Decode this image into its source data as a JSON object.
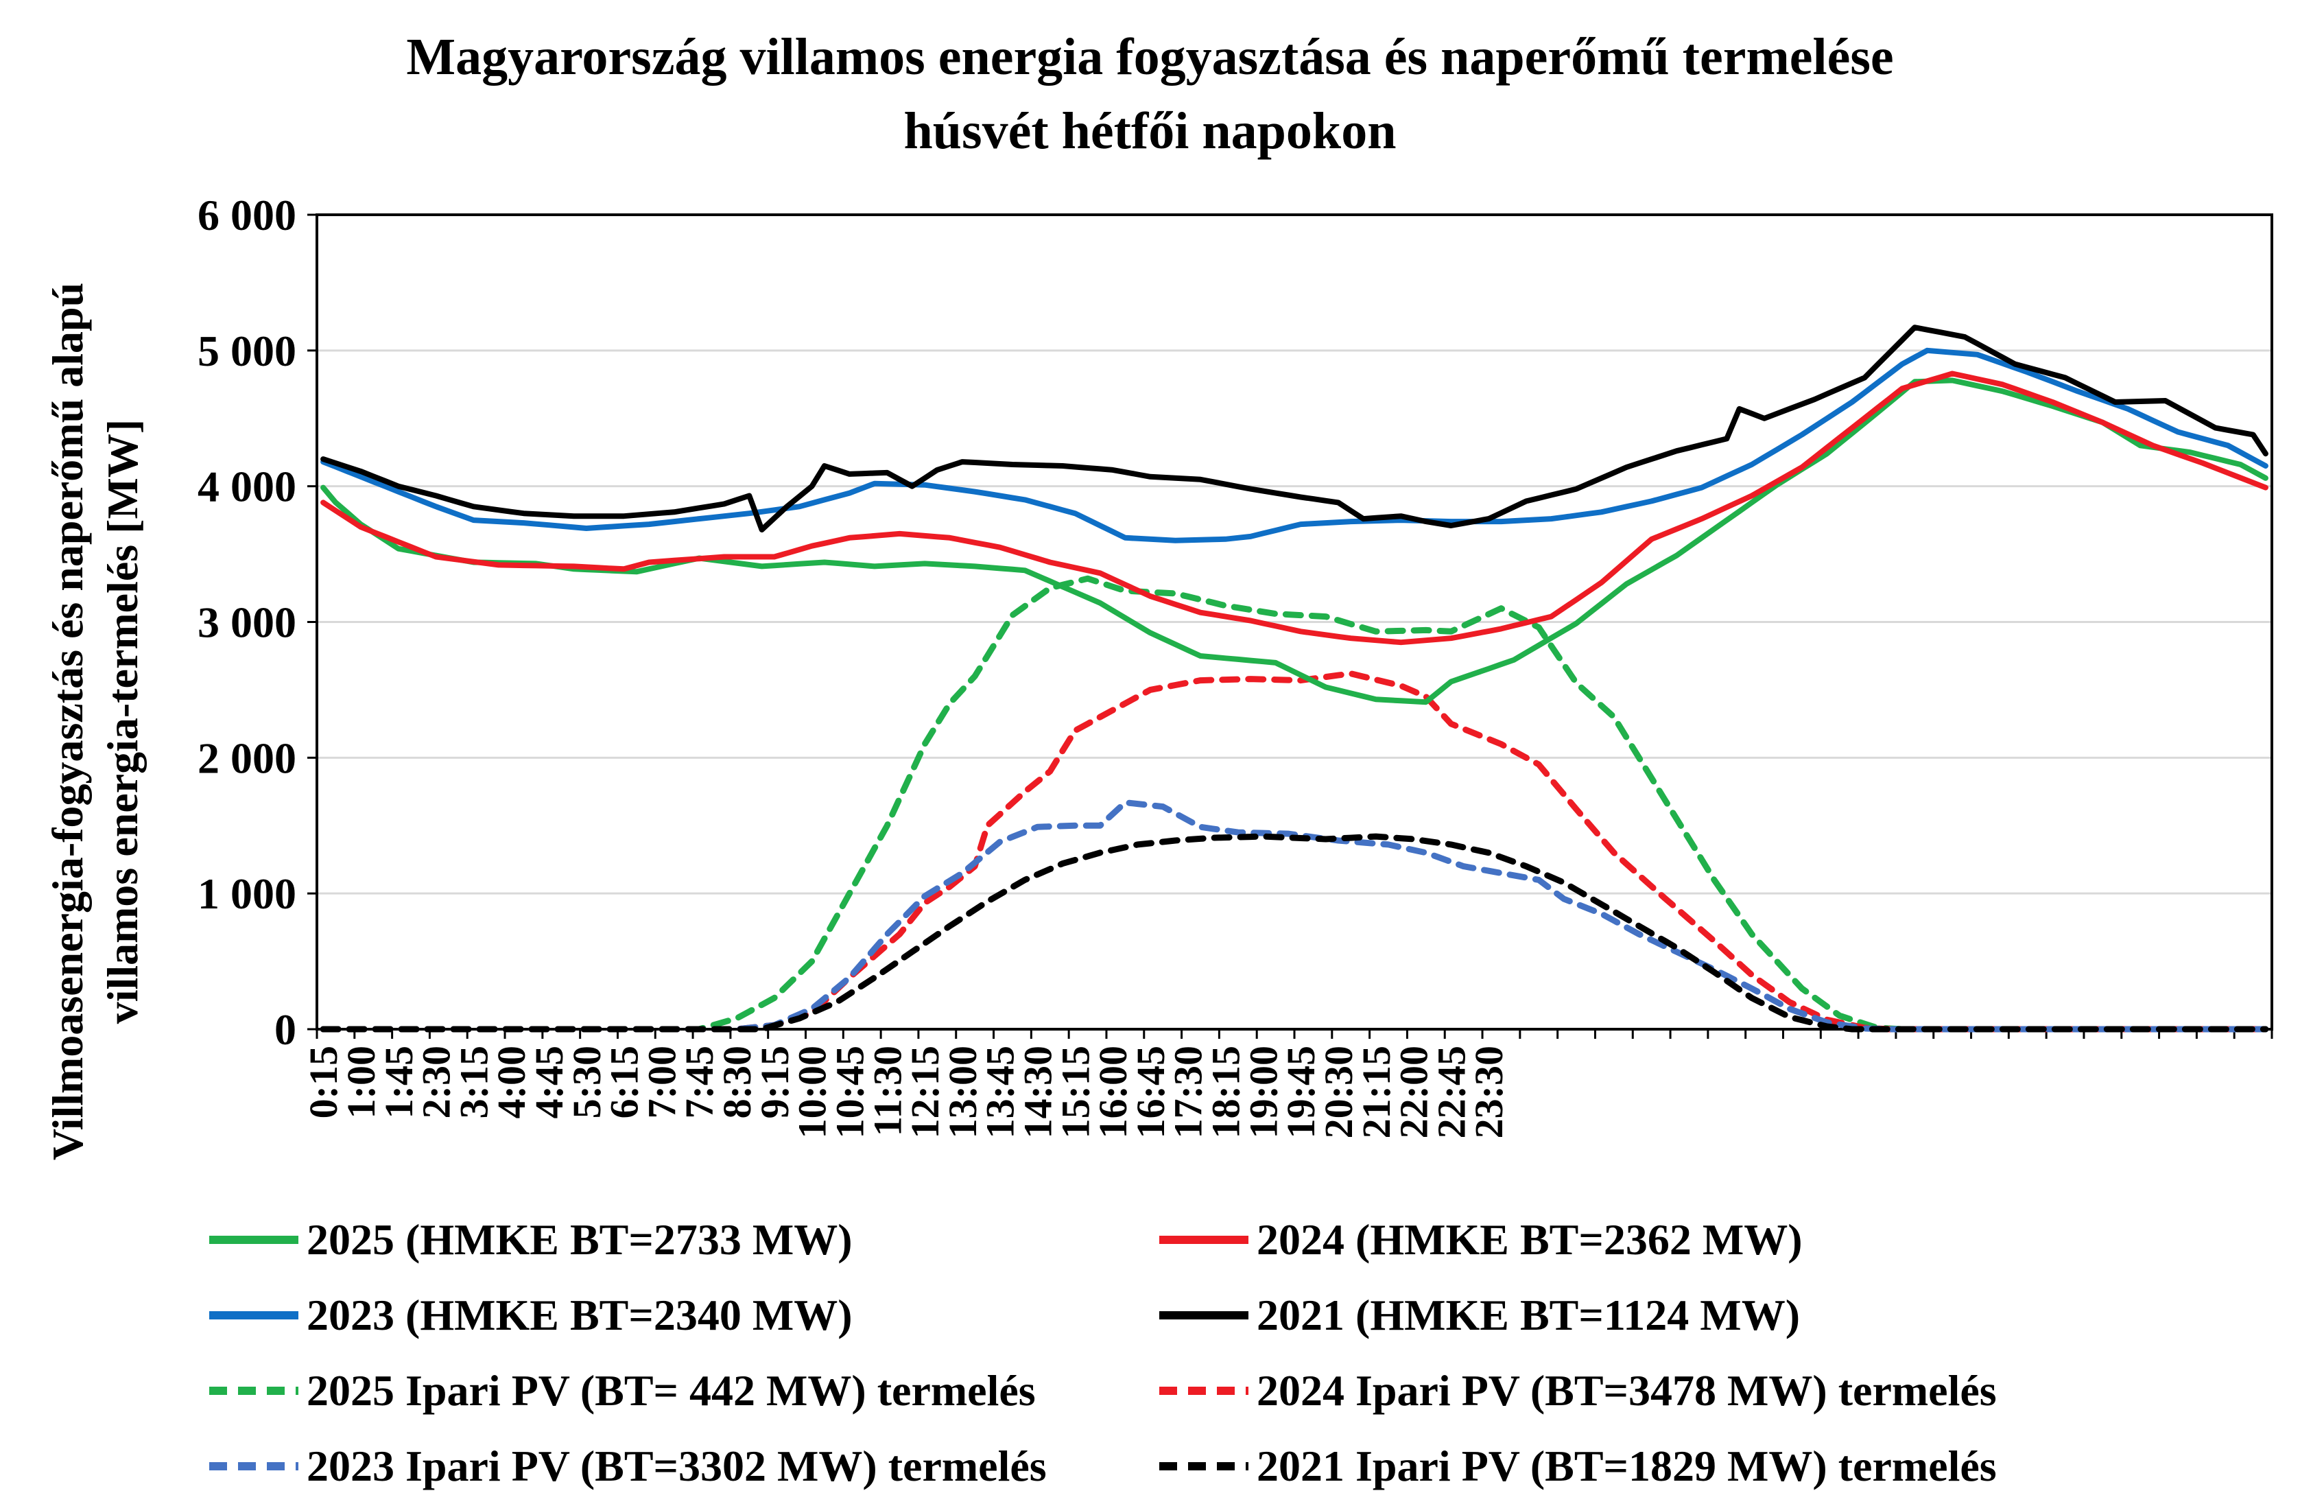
{
  "chart_data": {
    "type": "line",
    "title_line1": "Magyarország villamos energia fogyasztása és naperőmű termelése",
    "title_line2": "húsvét hétfői napokon",
    "ylabel_line1": "Villmoasenergia-fogyasztás és naperőmű alapú",
    "ylabel_line2": "villamos energia-termelés [MW]",
    "xlabel": "",
    "ylim": [
      0,
      6000
    ],
    "yticks": [
      0,
      1000,
      2000,
      3000,
      4000,
      5000,
      6000
    ],
    "ytick_labels": [
      "0",
      "1 000",
      "2 000",
      "3 000",
      "4 000",
      "5 000",
      "6 000"
    ],
    "x_tick_labels": [
      "0:15",
      "1:00",
      "1:45",
      "2:30",
      "3:15",
      "4:00",
      "4:45",
      "5:30",
      "6:15",
      "7:00",
      "7:45",
      "8:30",
      "9:15",
      "10:00",
      "10:45",
      "11:30",
      "12:15",
      "13:00",
      "13:45",
      "14:30",
      "15:15",
      "16:00",
      "16:45",
      "17:30",
      "18:15",
      "19:00",
      "19:45",
      "20:30",
      "21:15",
      "22:00",
      "22:45",
      "23:30"
    ],
    "grid": "horizontal",
    "legend_position": "bottom",
    "series": [
      {
        "name": "2025 (HMKE BT=2733 MW)",
        "color": "#21b04b",
        "dash": false,
        "keys": [
          [
            0,
            3990
          ],
          [
            1,
            3880
          ],
          [
            3,
            3720
          ],
          [
            6,
            3540
          ],
          [
            12,
            3440
          ],
          [
            17,
            3430
          ],
          [
            20,
            3390
          ],
          [
            25,
            3370
          ],
          [
            30,
            3470
          ],
          [
            35,
            3410
          ],
          [
            40,
            3440
          ],
          [
            44,
            3410
          ],
          [
            48,
            3430
          ],
          [
            52,
            3410
          ],
          [
            56,
            3380
          ],
          [
            62,
            3140
          ],
          [
            66,
            2920
          ],
          [
            70,
            2750
          ],
          [
            76,
            2700
          ],
          [
            80,
            2520
          ],
          [
            84,
            2430
          ],
          [
            88,
            2410
          ],
          [
            90,
            2560
          ],
          [
            95,
            2720
          ],
          [
            100,
            2990
          ],
          [
            104,
            3280
          ],
          [
            108,
            3490
          ],
          [
            112,
            3750
          ],
          [
            116,
            4010
          ],
          [
            120,
            4240
          ],
          [
            124,
            4540
          ],
          [
            127,
            4770
          ],
          [
            130,
            4780
          ],
          [
            134,
            4700
          ],
          [
            138,
            4590
          ],
          [
            142,
            4470
          ],
          [
            145,
            4300
          ],
          [
            149,
            4250
          ],
          [
            153,
            4160
          ],
          [
            155,
            4060
          ]
        ]
      },
      {
        "name": "2024 (HMKE BT=2362 MW)",
        "color": "#ed1c24",
        "dash": false,
        "keys": [
          [
            0,
            3880
          ],
          [
            3,
            3700
          ],
          [
            6,
            3590
          ],
          [
            9,
            3480
          ],
          [
            14,
            3420
          ],
          [
            20,
            3410
          ],
          [
            24,
            3390
          ],
          [
            26,
            3440
          ],
          [
            32,
            3480
          ],
          [
            36,
            3480
          ],
          [
            39,
            3560
          ],
          [
            42,
            3620
          ],
          [
            46,
            3650
          ],
          [
            50,
            3620
          ],
          [
            54,
            3550
          ],
          [
            58,
            3440
          ],
          [
            62,
            3360
          ],
          [
            66,
            3190
          ],
          [
            70,
            3070
          ],
          [
            74,
            3010
          ],
          [
            78,
            2930
          ],
          [
            82,
            2880
          ],
          [
            86,
            2850
          ],
          [
            90,
            2880
          ],
          [
            94,
            2950
          ],
          [
            98,
            3040
          ],
          [
            102,
            3290
          ],
          [
            106,
            3610
          ],
          [
            110,
            3760
          ],
          [
            114,
            3930
          ],
          [
            118,
            4140
          ],
          [
            122,
            4430
          ],
          [
            126,
            4720
          ],
          [
            130,
            4830
          ],
          [
            134,
            4750
          ],
          [
            138,
            4620
          ],
          [
            142,
            4470
          ],
          [
            146,
            4300
          ],
          [
            150,
            4170
          ],
          [
            155,
            3990
          ]
        ]
      },
      {
        "name": "2023 (HMKE BT=2340 MW)",
        "color": "#0f6fc6",
        "dash": false,
        "keys": [
          [
            0,
            4180
          ],
          [
            3,
            4070
          ],
          [
            6,
            3960
          ],
          [
            9,
            3850
          ],
          [
            12,
            3750
          ],
          [
            16,
            3730
          ],
          [
            21,
            3690
          ],
          [
            26,
            3720
          ],
          [
            30,
            3760
          ],
          [
            34,
            3800
          ],
          [
            38,
            3850
          ],
          [
            42,
            3950
          ],
          [
            44,
            4020
          ],
          [
            48,
            4010
          ],
          [
            52,
            3960
          ],
          [
            56,
            3900
          ],
          [
            60,
            3800
          ],
          [
            64,
            3620
          ],
          [
            68,
            3600
          ],
          [
            72,
            3610
          ],
          [
            74,
            3630
          ],
          [
            78,
            3720
          ],
          [
            82,
            3740
          ],
          [
            86,
            3750
          ],
          [
            90,
            3740
          ],
          [
            94,
            3740
          ],
          [
            98,
            3760
          ],
          [
            102,
            3810
          ],
          [
            106,
            3890
          ],
          [
            110,
            3990
          ],
          [
            114,
            4160
          ],
          [
            118,
            4380
          ],
          [
            122,
            4620
          ],
          [
            126,
            4900
          ],
          [
            128,
            5000
          ],
          [
            132,
            4970
          ],
          [
            136,
            4840
          ],
          [
            140,
            4700
          ],
          [
            144,
            4570
          ],
          [
            148,
            4400
          ],
          [
            152,
            4300
          ],
          [
            155,
            4150
          ]
        ]
      },
      {
        "name": "2021 (HMKE BT=1124 MW)",
        "color": "#000000",
        "dash": false,
        "keys": [
          [
            0,
            4200
          ],
          [
            3,
            4110
          ],
          [
            6,
            4000
          ],
          [
            9,
            3930
          ],
          [
            12,
            3850
          ],
          [
            16,
            3800
          ],
          [
            20,
            3780
          ],
          [
            24,
            3780
          ],
          [
            28,
            3810
          ],
          [
            32,
            3870
          ],
          [
            34,
            3930
          ],
          [
            35,
            3680
          ],
          [
            37,
            3850
          ],
          [
            39,
            4000
          ],
          [
            40,
            4150
          ],
          [
            42,
            4090
          ],
          [
            45,
            4100
          ],
          [
            47,
            4000
          ],
          [
            49,
            4120
          ],
          [
            51,
            4180
          ],
          [
            55,
            4160
          ],
          [
            59,
            4150
          ],
          [
            63,
            4120
          ],
          [
            66,
            4070
          ],
          [
            70,
            4050
          ],
          [
            74,
            3980
          ],
          [
            78,
            3920
          ],
          [
            81,
            3880
          ],
          [
            83,
            3760
          ],
          [
            86,
            3780
          ],
          [
            88,
            3740
          ],
          [
            90,
            3710
          ],
          [
            93,
            3760
          ],
          [
            96,
            3890
          ],
          [
            100,
            3980
          ],
          [
            104,
            4140
          ],
          [
            108,
            4260
          ],
          [
            112,
            4350
          ],
          [
            113,
            4570
          ],
          [
            115,
            4500
          ],
          [
            119,
            4640
          ],
          [
            123,
            4800
          ],
          [
            127,
            5170
          ],
          [
            131,
            5100
          ],
          [
            135,
            4900
          ],
          [
            139,
            4800
          ],
          [
            143,
            4620
          ],
          [
            147,
            4630
          ],
          [
            151,
            4430
          ],
          [
            154,
            4380
          ],
          [
            155,
            4240
          ]
        ]
      },
      {
        "name": "2025 Ipari PV (BT= 442 MW) termelés",
        "color": "#21b04b",
        "dash": true,
        "keys": [
          [
            0,
            0
          ],
          [
            30,
            0
          ],
          [
            33,
            80
          ],
          [
            36,
            230
          ],
          [
            39,
            500
          ],
          [
            42,
            1000
          ],
          [
            45,
            1500
          ],
          [
            48,
            2100
          ],
          [
            50,
            2400
          ],
          [
            52,
            2600
          ],
          [
            55,
            3050
          ],
          [
            58,
            3250
          ],
          [
            61,
            3320
          ],
          [
            64,
            3230
          ],
          [
            68,
            3210
          ],
          [
            72,
            3120
          ],
          [
            76,
            3060
          ],
          [
            80,
            3040
          ],
          [
            84,
            2930
          ],
          [
            88,
            2940
          ],
          [
            90,
            2930
          ],
          [
            94,
            3100
          ],
          [
            97,
            2960
          ],
          [
            100,
            2550
          ],
          [
            103,
            2300
          ],
          [
            107,
            1700
          ],
          [
            111,
            1100
          ],
          [
            114,
            700
          ],
          [
            118,
            300
          ],
          [
            121,
            100
          ],
          [
            124,
            10
          ],
          [
            126,
            0
          ],
          [
            155,
            0
          ]
        ]
      },
      {
        "name": "2024 Ipari PV (BT=3478 MW) termelés",
        "color": "#ed1c24",
        "dash": true,
        "keys": [
          [
            0,
            0
          ],
          [
            33,
            0
          ],
          [
            36,
            30
          ],
          [
            39,
            120
          ],
          [
            42,
            380
          ],
          [
            46,
            700
          ],
          [
            48,
            930
          ],
          [
            50,
            1050
          ],
          [
            52,
            1200
          ],
          [
            53,
            1500
          ],
          [
            56,
            1750
          ],
          [
            58,
            1900
          ],
          [
            60,
            2200
          ],
          [
            63,
            2350
          ],
          [
            66,
            2500
          ],
          [
            70,
            2570
          ],
          [
            74,
            2580
          ],
          [
            78,
            2570
          ],
          [
            82,
            2620
          ],
          [
            86,
            2530
          ],
          [
            88,
            2450
          ],
          [
            90,
            2250
          ],
          [
            94,
            2100
          ],
          [
            97,
            1950
          ],
          [
            100,
            1620
          ],
          [
            103,
            1300
          ],
          [
            107,
            970
          ],
          [
            111,
            650
          ],
          [
            114,
            400
          ],
          [
            117,
            200
          ],
          [
            120,
            70
          ],
          [
            123,
            10
          ],
          [
            125,
            0
          ],
          [
            155,
            0
          ]
        ]
      },
      {
        "name": "2023 Ipari PV (BT=3302 MW) termelés",
        "color": "#4472c4",
        "dash": true,
        "keys": [
          [
            0,
            0
          ],
          [
            33,
            0
          ],
          [
            36,
            30
          ],
          [
            39,
            150
          ],
          [
            42,
            380
          ],
          [
            45,
            700
          ],
          [
            48,
            980
          ],
          [
            51,
            1150
          ],
          [
            54,
            1380
          ],
          [
            57,
            1490
          ],
          [
            60,
            1500
          ],
          [
            62,
            1500
          ],
          [
            64,
            1670
          ],
          [
            67,
            1640
          ],
          [
            70,
            1490
          ],
          [
            73,
            1450
          ],
          [
            77,
            1440
          ],
          [
            81,
            1390
          ],
          [
            85,
            1360
          ],
          [
            88,
            1300
          ],
          [
            91,
            1200
          ],
          [
            94,
            1150
          ],
          [
            97,
            1100
          ],
          [
            99,
            960
          ],
          [
            102,
            850
          ],
          [
            105,
            700
          ],
          [
            108,
            570
          ],
          [
            111,
            440
          ],
          [
            114,
            300
          ],
          [
            117,
            150
          ],
          [
            120,
            50
          ],
          [
            123,
            5
          ],
          [
            125,
            0
          ],
          [
            155,
            0
          ]
        ]
      },
      {
        "name": "2021 Ipari PV (BT=1829 MW) termelés",
        "color": "#000000",
        "dash": true,
        "keys": [
          [
            0,
            0
          ],
          [
            35,
            0
          ],
          [
            38,
            80
          ],
          [
            41,
            200
          ],
          [
            44,
            380
          ],
          [
            47,
            570
          ],
          [
            50,
            760
          ],
          [
            53,
            940
          ],
          [
            56,
            1100
          ],
          [
            59,
            1220
          ],
          [
            62,
            1300
          ],
          [
            65,
            1360
          ],
          [
            68,
            1390
          ],
          [
            71,
            1410
          ],
          [
            75,
            1420
          ],
          [
            80,
            1400
          ],
          [
            84,
            1420
          ],
          [
            87,
            1400
          ],
          [
            90,
            1360
          ],
          [
            93,
            1300
          ],
          [
            96,
            1200
          ],
          [
            99,
            1080
          ],
          [
            102,
            920
          ],
          [
            105,
            760
          ],
          [
            108,
            600
          ],
          [
            111,
            420
          ],
          [
            114,
            230
          ],
          [
            117,
            90
          ],
          [
            120,
            20
          ],
          [
            122,
            0
          ],
          [
            155,
            0
          ]
        ]
      }
    ]
  }
}
